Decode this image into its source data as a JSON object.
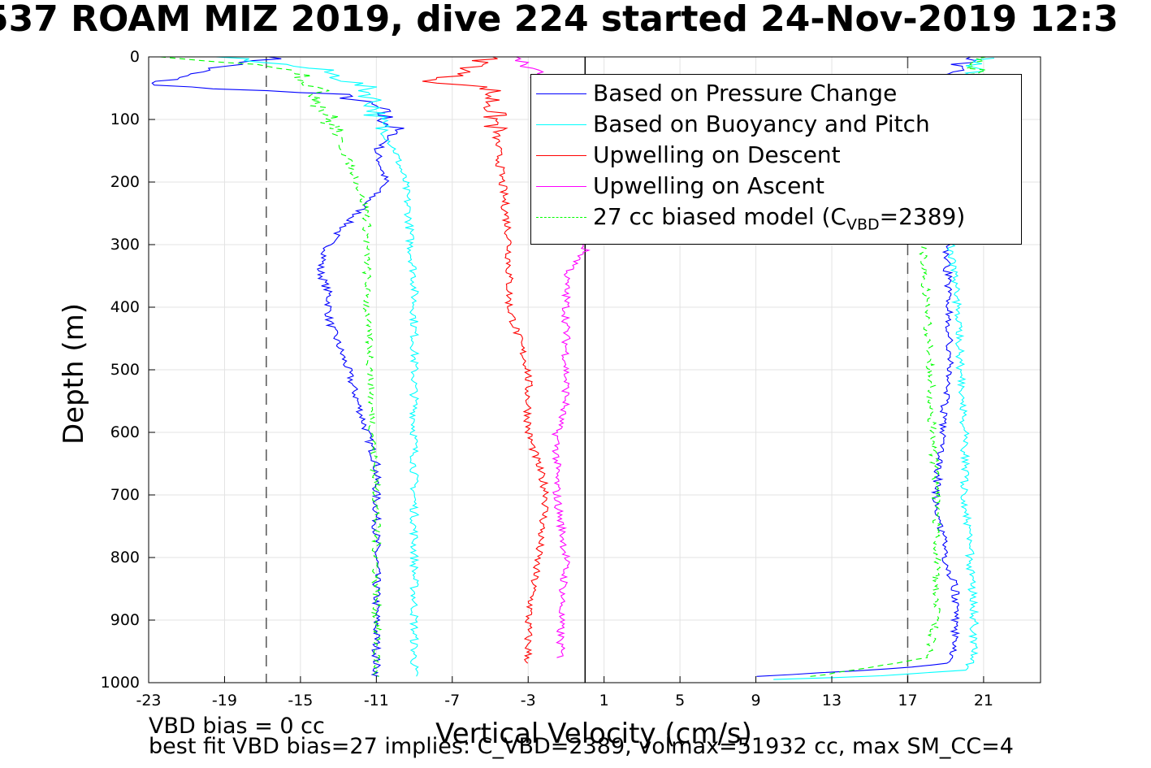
{
  "figure": {
    "title": "537 ROAM MIZ 2019, dive 224 started 24-Nov-2019 12:3",
    "footer_line1": "VBD bias = 0 cc",
    "footer_line2": "best fit VBD bias=27 implies: C_VBD=2389, volmax=51932 cc, max SM_CC=4"
  },
  "legend": {
    "items": [
      {
        "label": "Based on Pressure Change",
        "color": "#0000ff",
        "style": "solid"
      },
      {
        "label": "Based on Buoyancy and Pitch",
        "color": "#00ffff",
        "style": "solid"
      },
      {
        "label": "Upwelling on Descent",
        "color": "#ff0000",
        "style": "solid"
      },
      {
        "label": "Upwelling on Ascent",
        "color": "#ff00ff",
        "style": "solid"
      },
      {
        "label_prefix": "27 cc biased model (C",
        "label_sub": "VBD",
        "label_suffix": "=2389)",
        "color": "#00ff00",
        "style": "dashed"
      }
    ]
  },
  "chart_data": {
    "type": "line",
    "xlabel": "Vertical Velocity (cm/s)",
    "ylabel": "Depth (m)",
    "xlim": [
      -23,
      24
    ],
    "ylim": [
      0,
      1000
    ],
    "y_reversed": true,
    "grid": true,
    "legend_position": "top-right",
    "xticks": [
      -23,
      -19,
      -15,
      -11,
      -7,
      -3,
      1,
      5,
      9,
      13,
      17,
      21
    ],
    "yticks": [
      0,
      100,
      200,
      300,
      400,
      500,
      600,
      700,
      800,
      900,
      1000
    ],
    "reference_lines": [
      {
        "type": "vertical-dashed",
        "x": -16.8,
        "color": "#555555"
      },
      {
        "type": "vertical-dashed",
        "x": 17,
        "color": "#555555"
      },
      {
        "type": "vertical-solid",
        "x": 0,
        "color": "#000000"
      }
    ],
    "series": [
      {
        "name": "Based on Pressure Change",
        "color": "#0000ff",
        "descent": {
          "depth": [
            0,
            20,
            45,
            60,
            80,
            100,
            120,
            150,
            200,
            250,
            280,
            300,
            340,
            380,
            420,
            500,
            550,
            600,
            650,
            700,
            800,
            900,
            990
          ],
          "velocity": [
            -16,
            -20,
            -23,
            -13,
            -11,
            -10.5,
            -10,
            -11,
            -10.5,
            -12,
            -13,
            -13.5,
            -14,
            -13.5,
            -13.5,
            -12.5,
            -12,
            -11.5,
            -11,
            -11,
            -11,
            -11,
            -11
          ]
        },
        "ascent": {
          "depth": [
            990,
            980,
            970,
            950,
            900,
            850,
            800,
            700,
            600,
            500,
            400,
            300,
            100,
            0
          ],
          "velocity": [
            9,
            15,
            19,
            19.5,
            19.5,
            19.5,
            19,
            18.5,
            18.8,
            19.2,
            19.2,
            19,
            18,
            20
          ]
        }
      },
      {
        "name": "Based on Buoyancy and Pitch",
        "color": "#00ffff",
        "descent": {
          "depth": [
            0,
            20,
            50,
            80,
            100,
            150,
            200,
            250,
            300,
            350,
            400,
            500,
            600,
            700,
            800,
            900,
            990
          ],
          "velocity": [
            -19,
            -14,
            -11.5,
            -11,
            -11,
            -10,
            -9.5,
            -9.3,
            -9.2,
            -9.0,
            -9.0,
            -9.0,
            -9.0,
            -9.0,
            -9.0,
            -9.0,
            -9.0
          ]
        },
        "ascent": {
          "depth": [
            995,
            990,
            980,
            960,
            900,
            800,
            700,
            600,
            500,
            400,
            300,
            200,
            100,
            0
          ],
          "velocity": [
            10,
            15,
            20,
            20.5,
            20.5,
            20.3,
            20,
            20,
            19.8,
            19.6,
            19.3,
            19,
            19,
            21
          ]
        }
      },
      {
        "name": "Upwelling on Descent",
        "color": "#ff0000",
        "descent": {
          "depth": [
            0,
            20,
            40,
            50,
            290,
            320,
            360,
            400,
            450,
            500,
            550,
            600,
            650,
            700,
            800,
            900,
            970
          ],
          "velocity": [
            -5,
            -6,
            -8,
            -5,
            -4,
            -4,
            -4,
            -4,
            -3.5,
            -3,
            -3,
            -3,
            -2.5,
            -2,
            -2.5,
            -3,
            -3
          ]
        }
      },
      {
        "name": "Upwelling on Ascent",
        "color": "#ff00ff",
        "ascent": {
          "depth": [
            0,
            20,
            40,
            310,
            350,
            400,
            450,
            500,
            550,
            600,
            650,
            700,
            800,
            900,
            960
          ],
          "velocity": [
            -4,
            -3,
            -2,
            0,
            -1,
            -1,
            -1,
            -1,
            -1,
            -1.5,
            -1.5,
            -1.5,
            -1,
            -1.3,
            -1.3
          ]
        }
      },
      {
        "name": "27 cc biased model (CVBD=2389)",
        "color": "#00ff00",
        "dashed": true,
        "descent": {
          "depth": [
            0,
            20,
            60,
            100,
            130,
            200,
            250,
            300,
            400,
            500,
            600,
            700,
            800,
            900,
            990
          ],
          "velocity": [
            -22,
            -15,
            -14,
            -13.5,
            -13,
            -12,
            -11.5,
            -11.5,
            -11.5,
            -11.3,
            -11.2,
            -11,
            -11,
            -11,
            -11
          ]
        },
        "ascent": {
          "depth": [
            990,
            960,
            900,
            800,
            700,
            600,
            500,
            400,
            300,
            100,
            0
          ],
          "velocity": [
            12,
            18,
            18.5,
            18.5,
            18.5,
            18.3,
            18.2,
            18.0,
            17.8,
            18.5,
            21
          ]
        }
      }
    ]
  }
}
